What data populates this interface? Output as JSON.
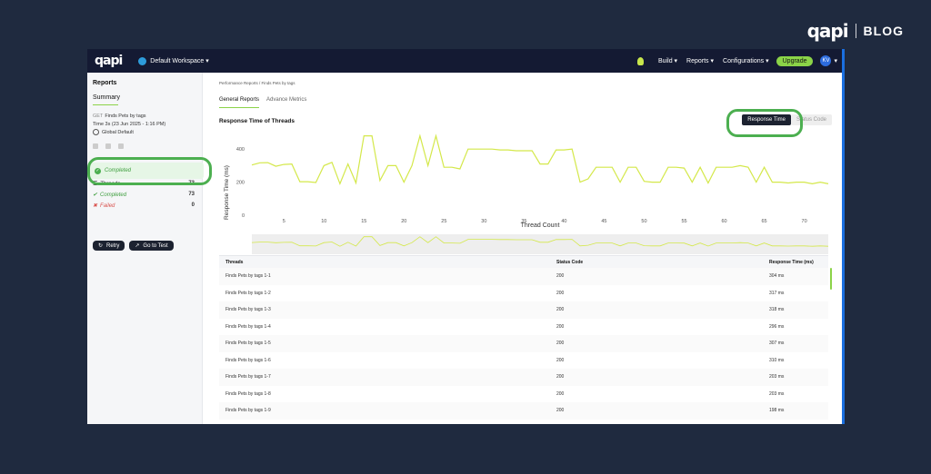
{
  "brand": {
    "logo": "qapi",
    "blog": "BLOG"
  },
  "topbar": {
    "logo": "qapi",
    "workspace": "Default Workspace ▾",
    "build": "Build ▾",
    "reports": "Reports ▾",
    "configurations": "Configurations ▾",
    "upgrade": "Upgrade",
    "avatar": "KV"
  },
  "sidebar": {
    "title": "Reports",
    "summary": "Summary",
    "method": "GET",
    "test_name": "Finds Pets by tags",
    "time": "Time  3s (23 Jun 2025 - 1:16 PM)",
    "environment": "Global Default",
    "status": "Completed",
    "stats": [
      {
        "label": "Threads",
        "value": "73"
      },
      {
        "label": "Completed",
        "value": "73"
      },
      {
        "label": "Failed",
        "value": "0"
      }
    ],
    "retry": "Retry",
    "goto": "Go to Test"
  },
  "main": {
    "breadcrumb": "Performance Reports  /  Finds Pets by tags",
    "tabs": [
      "General Reports",
      "Advance Metrics"
    ],
    "chart_title": "Response Time of Threads",
    "toggle": [
      "Response Time",
      "Status Code"
    ]
  },
  "chart_data": {
    "type": "line",
    "xlabel": "Thread Count",
    "ylabel": "Response Time (ms)",
    "ylim": [
      0,
      500
    ],
    "yticks": [
      0,
      200,
      400
    ],
    "xticks": [
      5,
      10,
      15,
      20,
      25,
      30,
      35,
      40,
      45,
      50,
      55,
      60,
      65,
      70
    ],
    "color": "#d4e84a",
    "series": [
      {
        "values": [
          304,
          317,
          318,
          296,
          307,
          310,
          203,
          203,
          198,
          300,
          320,
          190,
          310,
          195,
          480,
          480,
          210,
          300,
          300,
          200,
          300,
          480,
          300,
          480,
          290,
          290,
          280,
          400,
          400,
          400,
          400,
          395,
          395,
          390,
          390,
          390,
          310,
          310,
          395,
          395,
          400,
          200,
          220,
          290,
          290,
          290,
          200,
          290,
          290,
          205,
          200,
          200,
          290,
          290,
          285,
          200,
          290,
          195,
          290,
          290,
          290,
          300,
          290,
          200,
          290,
          200,
          200,
          195,
          200,
          200,
          190,
          200,
          190
        ]
      }
    ]
  },
  "table": {
    "headers": [
      "Threads",
      "Status Code",
      "Response Time (ms)"
    ],
    "rows": [
      [
        "Finds Pets by tags 1-1",
        "200",
        "304 ms"
      ],
      [
        "Finds Pets by tags 1-2",
        "200",
        "317 ms"
      ],
      [
        "Finds Pets by tags 1-3",
        "200",
        "318 ms"
      ],
      [
        "Finds Pets by tags 1-4",
        "200",
        "296 ms"
      ],
      [
        "Finds Pets by tags 1-5",
        "200",
        "307 ms"
      ],
      [
        "Finds Pets by tags 1-6",
        "200",
        "310 ms"
      ],
      [
        "Finds Pets by tags 1-7",
        "200",
        "203 ms"
      ],
      [
        "Finds Pets by tags 1-8",
        "200",
        "203 ms"
      ],
      [
        "Finds Pets by tags 1-9",
        "200",
        "198 ms"
      ]
    ]
  }
}
